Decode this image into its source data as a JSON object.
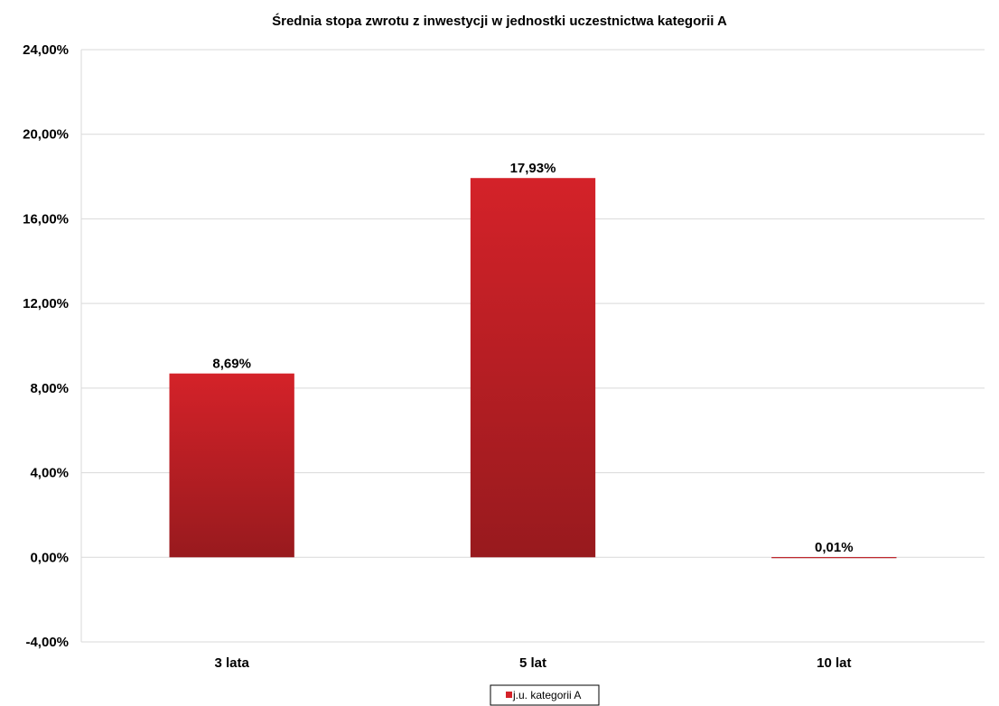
{
  "chart_data": {
    "type": "bar",
    "title": "Średnia stopa zwrotu z inwestycji w jednostki uczestnictwa kategorii A",
    "categories": [
      "3 lata",
      "5 lat",
      "10 lat"
    ],
    "series": [
      {
        "name": "j.u. kategorii A",
        "values": [
          8.69,
          17.93,
          0.01
        ],
        "labels": [
          "8,69%",
          "17,93%",
          "0,01%"
        ]
      }
    ],
    "ylim": [
      -4,
      24
    ],
    "yticks": [
      24,
      20,
      16,
      12,
      8,
      4,
      0,
      -4
    ],
    "ytick_labels": [
      "24,00%",
      "20,00%",
      "16,00%",
      "12,00%",
      "8,00%",
      "4,00%",
      "0,00%",
      "-4,00%"
    ],
    "grid": true,
    "legend_position": "bottom",
    "colors": {
      "bar_top": "#d42229",
      "bar_bottom": "#981a1e",
      "grid": "#d9d9d9"
    }
  }
}
